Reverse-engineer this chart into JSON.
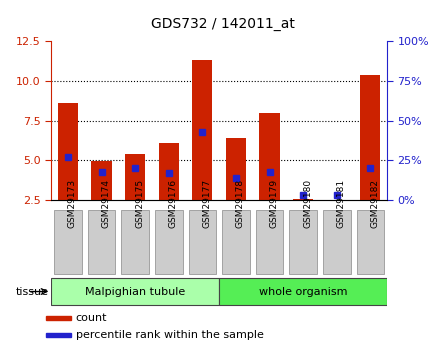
{
  "title": "GDS732 / 142011_at",
  "samples": [
    "GSM29173",
    "GSM29174",
    "GSM29175",
    "GSM29176",
    "GSM29177",
    "GSM29178",
    "GSM29179",
    "GSM29180",
    "GSM29181",
    "GSM29182"
  ],
  "count_values": [
    8.6,
    4.95,
    5.4,
    6.1,
    11.3,
    6.4,
    8.0,
    2.6,
    2.5,
    10.4
  ],
  "percentile_values": [
    27,
    18,
    20,
    17,
    43,
    14,
    18,
    3,
    3,
    20
  ],
  "ylim_left": [
    2.5,
    12.5
  ],
  "ylim_right": [
    0,
    100
  ],
  "yticks_left": [
    2.5,
    5.0,
    7.5,
    10.0,
    12.5
  ],
  "yticks_right": [
    0,
    25,
    50,
    75,
    100
  ],
  "ytick_labels_right": [
    "0%",
    "25%",
    "50%",
    "75%",
    "100%"
  ],
  "bar_color": "#cc2200",
  "blue_color": "#2222cc",
  "bg_color": "#ffffff",
  "tissue_groups": [
    {
      "label": "Malpighian tubule",
      "indices": [
        0,
        1,
        2,
        3,
        4
      ],
      "color": "#aaffaa"
    },
    {
      "label": "whole organism",
      "indices": [
        5,
        6,
        7,
        8,
        9
      ],
      "color": "#55ee55"
    }
  ],
  "tissue_label": "tissue",
  "legend_items": [
    {
      "label": "count",
      "color": "#cc2200"
    },
    {
      "label": "percentile rank within the sample",
      "color": "#2222cc"
    }
  ]
}
